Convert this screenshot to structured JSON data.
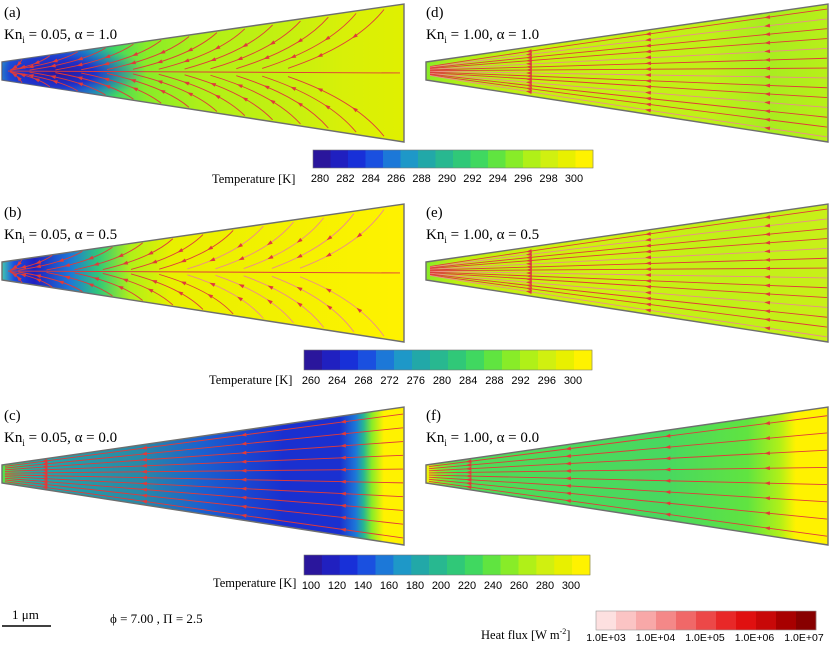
{
  "panels": [
    {
      "id": "a",
      "tag": "(a)",
      "kn_prefix": "Kn",
      "kn_sub": "i",
      "params": " = 0.05, α = 1.0"
    },
    {
      "id": "b",
      "tag": "(b)",
      "kn_prefix": "Kn",
      "kn_sub": "i",
      "params": " = 0.05, α = 0.5"
    },
    {
      "id": "c",
      "tag": "(c)",
      "kn_prefix": "Kn",
      "kn_sub": "i",
      "params": " = 0.05, α = 0.0"
    },
    {
      "id": "d",
      "tag": "(d)",
      "kn_prefix": "Kn",
      "kn_sub": "i",
      "params": " = 1.00, α = 1.0"
    },
    {
      "id": "e",
      "tag": "(e)",
      "kn_prefix": "Kn",
      "kn_sub": "i",
      "params": " = 1.00, α = 0.5"
    },
    {
      "id": "f",
      "tag": "(f)",
      "kn_prefix": "Kn",
      "kn_sub": "i",
      "params": " = 1.00, α = 0.0"
    }
  ],
  "colorbars": [
    {
      "title": "Temperature [K]",
      "ticks": [
        "280",
        "282",
        "284",
        "286",
        "288",
        "290",
        "292",
        "294",
        "296",
        "298",
        "300"
      ]
    },
    {
      "title": "Temperature [K]",
      "ticks": [
        "260",
        "264",
        "268",
        "272",
        "276",
        "280",
        "284",
        "288",
        "292",
        "296",
        "300"
      ]
    },
    {
      "title": "Temperature [K]",
      "ticks": [
        "100",
        "120",
        "140",
        "160",
        "180",
        "200",
        "220",
        "240",
        "260",
        "280",
        "300"
      ]
    }
  ],
  "heat_flux": {
    "title_main": "Heat flux [W m",
    "title_sup": "-2",
    "title_end": "]",
    "ticks": [
      "1.0E+03",
      "1.0E+04",
      "1.0E+05",
      "1.0E+06",
      "1.0E+07"
    ],
    "colors": [
      "#fde0e0",
      "#fbc4c4",
      "#f8a8a8",
      "#f48888",
      "#f06868",
      "#ec4848",
      "#e82828",
      "#e01010",
      "#c80808",
      "#a80000",
      "#880000"
    ]
  },
  "scale_bar": "1 μm",
  "parameters": "ϕ = 7.00 , Π = 2.5",
  "palette": [
    "#2a169c",
    "#2020c0",
    "#1830d8",
    "#1a50e0",
    "#1c78d8",
    "#1e98c8",
    "#22a8a8",
    "#28b890",
    "#30c878",
    "#40d860",
    "#60e440",
    "#88ec28",
    "#b0f018",
    "#d0f010",
    "#e8f000",
    "#fff200"
  ],
  "colors": {
    "streamline": "#e03a3a",
    "streamline_faint": "#ee8a8a",
    "outline": "#6e6e6e"
  }
}
